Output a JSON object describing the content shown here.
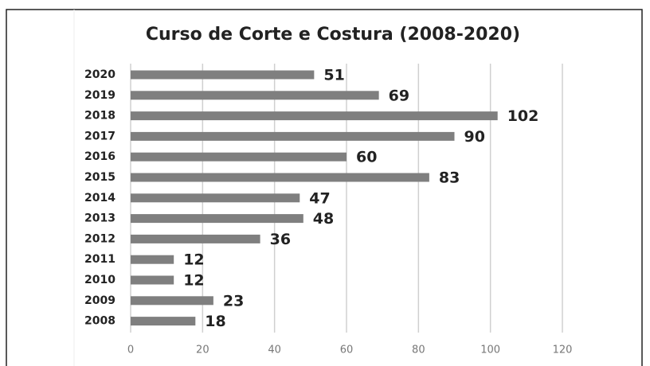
{
  "chart_data": {
    "type": "bar",
    "orientation": "horizontal",
    "title": "Curso de Corte e Costura (2008-2020)",
    "categories": [
      "2020",
      "2019",
      "2018",
      "2017",
      "2016",
      "2015",
      "2014",
      "2013",
      "2012",
      "2011",
      "2010",
      "2009",
      "2008"
    ],
    "values": [
      51,
      69,
      102,
      90,
      60,
      83,
      47,
      48,
      36,
      12,
      12,
      23,
      18
    ],
    "color": "#7f7f7f",
    "xlim": [
      0,
      120
    ],
    "xticks": [
      0,
      20,
      40,
      60,
      80,
      100,
      120
    ],
    "grid": true
  }
}
